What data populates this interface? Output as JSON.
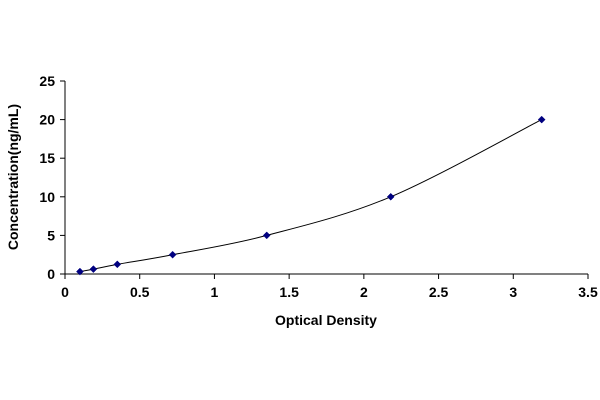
{
  "chart_data": {
    "type": "scatter",
    "title": "",
    "xlabel": "Optical Density",
    "ylabel": "Concentration(ng/mL)",
    "xlim": [
      0,
      3.5
    ],
    "ylim": [
      0,
      25
    ],
    "x_ticks": [
      "0",
      "0.5",
      "1",
      "1.5",
      "2",
      "2.5",
      "3",
      "3.5"
    ],
    "y_ticks": [
      "0",
      "5",
      "10",
      "15",
      "20",
      "25"
    ],
    "grid": false,
    "legend": "none",
    "series": [
      {
        "x": [
          0.1,
          0.19,
          0.35,
          0.72,
          1.35,
          2.18,
          3.19
        ],
        "y": [
          0.31,
          0.63,
          1.25,
          2.5,
          5,
          10,
          20
        ],
        "marker": "diamond",
        "trendline": "smooth curve",
        "color": "#000080"
      }
    ],
    "colors": {
      "marker": "#000080",
      "line": "#000000",
      "axis": "#000000"
    }
  }
}
